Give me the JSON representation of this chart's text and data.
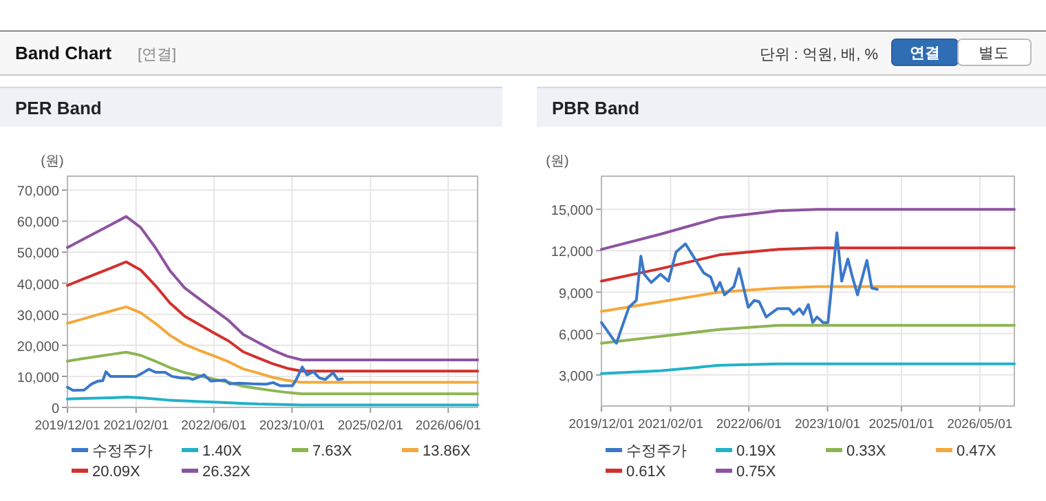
{
  "chart_data": [
    {
      "type": "line",
      "title": "PER Band",
      "ylabel": "(원)",
      "annotations": [
        "Band Chart",
        "[연결]",
        "단위 : 억원, 배, %",
        "연결",
        "별도"
      ],
      "xlim": [
        "2019-12-01",
        "2026-12-01"
      ],
      "xticks": [
        {
          "value": "2019-12-01",
          "label": "2019/12/01"
        },
        {
          "value": "2021-02-01",
          "label": "2021/02/01"
        },
        {
          "value": "2022-06-01",
          "label": "2022/06/01"
        },
        {
          "value": "2023-10-01",
          "label": "2023/10/01"
        },
        {
          "value": "2025-02-01",
          "label": "2025/02/01"
        },
        {
          "value": "2026-06-01",
          "label": "2026/06/01"
        }
      ],
      "ylim": [
        0,
        74500
      ],
      "yticks": [
        0,
        {
          "value": 10000,
          "label": "10,000"
        },
        {
          "value": 20000,
          "label": "20,000"
        },
        {
          "value": 30000,
          "label": "30,000"
        },
        {
          "value": 40000,
          "label": "40,000"
        },
        {
          "value": 50000,
          "label": "50,000"
        },
        {
          "value": 60000,
          "label": "60,000"
        },
        {
          "value": 70000,
          "label": "70,000"
        }
      ],
      "grid": true,
      "legend": "bottom",
      "series": [
        {
          "name": "수정주가",
          "color": "#3a78c9",
          "x": [
            "2019-12-01",
            "2020-01-05",
            "2020-03-15",
            "2020-04-28",
            "2020-06-10",
            "2020-07-08",
            "2020-07-28",
            "2020-08-25",
            "2021-02-01",
            "2021-03-10",
            "2021-04-22",
            "2021-06-03",
            "2021-08-01",
            "2021-09-12",
            "2021-11-10",
            "2021-12-22",
            "2022-01-20",
            "2022-04-01",
            "2022-05-12",
            "2022-08-10",
            "2022-09-07",
            "2022-11-04",
            "2023-01-28",
            "2023-04-24",
            "2023-06-05",
            "2023-07-18",
            "2023-10-04",
            "2023-10-28",
            "2023-12-04",
            "2024-01-03",
            "2024-02-12",
            "2024-03-19",
            "2024-04-25",
            "2024-06-13",
            "2024-07-12",
            "2024-08-10"
          ],
          "values": [
            6500,
            5500,
            5600,
            7500,
            8500,
            8600,
            11500,
            10000,
            10000,
            11000,
            12300,
            11300,
            11300,
            10000,
            9500,
            9500,
            9000,
            10500,
            8500,
            8800,
            7600,
            7800,
            7600,
            7500,
            8000,
            7000,
            7000,
            9000,
            13000,
            10500,
            11500,
            9500,
            9000,
            11200,
            9000,
            9200
          ]
        },
        {
          "name": "1.40X",
          "color": "#20b2c8",
          "x": [
            "2019-12-01",
            "2020-03-01",
            "2020-06-01",
            "2020-09-01",
            "2020-12-01",
            "2021-03-01",
            "2021-06-01",
            "2021-09-01",
            "2021-12-01",
            "2022-03-01",
            "2022-06-01",
            "2022-09-01",
            "2022-12-01",
            "2023-03-01",
            "2023-06-01",
            "2023-09-01",
            "2023-12-01",
            "2026-12-01"
          ],
          "values": [
            2700,
            2900,
            3000,
            3100,
            3300,
            3100,
            2700,
            2300,
            2100,
            1900,
            1700,
            1500,
            1300,
            1100,
            1000,
            900,
            800,
            800
          ]
        },
        {
          "name": "7.63X",
          "color": "#8db552",
          "x": [
            "2019-12-01",
            "2020-03-01",
            "2020-06-01",
            "2020-09-01",
            "2020-12-01",
            "2021-03-01",
            "2021-06-01",
            "2021-09-01",
            "2021-12-01",
            "2022-03-01",
            "2022-06-01",
            "2022-09-01",
            "2022-12-01",
            "2023-03-01",
            "2023-06-01",
            "2023-09-01",
            "2023-12-01",
            "2026-12-01"
          ],
          "values": [
            14900,
            15700,
            16400,
            17100,
            17800,
            16800,
            14900,
            12800,
            11200,
            10200,
            9100,
            8100,
            6800,
            6100,
            5400,
            4800,
            4400,
            4400
          ]
        },
        {
          "name": "13.86X",
          "color": "#f5a83b",
          "x": [
            "2019-12-01",
            "2020-03-01",
            "2020-06-01",
            "2020-09-01",
            "2020-12-01",
            "2021-03-01",
            "2021-06-01",
            "2021-09-01",
            "2021-12-01",
            "2022-03-01",
            "2022-06-01",
            "2022-09-01",
            "2022-12-01",
            "2023-03-01",
            "2023-06-01",
            "2023-09-01",
            "2023-12-01",
            "2026-12-01"
          ],
          "values": [
            27100,
            28400,
            29800,
            31100,
            32400,
            30500,
            27100,
            23200,
            20300,
            18400,
            16600,
            14700,
            12400,
            11100,
            9700,
            8700,
            8100,
            8100
          ]
        },
        {
          "name": "20.09X",
          "color": "#d3302c",
          "x": [
            "2019-12-01",
            "2020-03-01",
            "2020-06-01",
            "2020-09-01",
            "2020-12-01",
            "2021-03-01",
            "2021-06-01",
            "2021-09-01",
            "2021-12-01",
            "2022-03-01",
            "2022-06-01",
            "2022-09-01",
            "2022-12-01",
            "2023-03-01",
            "2023-06-01",
            "2023-09-01",
            "2023-12-01",
            "2026-12-01"
          ],
          "values": [
            39300,
            41200,
            43100,
            45000,
            46900,
            44300,
            39300,
            33600,
            29400,
            26700,
            24000,
            21400,
            17900,
            16000,
            14100,
            12600,
            11700,
            11700
          ]
        },
        {
          "name": "26.32X",
          "color": "#8e53a0",
          "x": [
            "2019-12-01",
            "2020-03-01",
            "2020-06-01",
            "2020-09-01",
            "2020-12-01",
            "2021-03-01",
            "2021-06-01",
            "2021-09-01",
            "2021-12-01",
            "2022-03-01",
            "2022-06-01",
            "2022-09-01",
            "2022-12-01",
            "2023-03-01",
            "2023-06-01",
            "2023-09-01",
            "2023-12-01",
            "2026-12-01"
          ],
          "values": [
            51500,
            54000,
            56500,
            59000,
            61500,
            58000,
            51500,
            44000,
            38500,
            35000,
            31500,
            28000,
            23500,
            21000,
            18500,
            16500,
            15300,
            15300
          ]
        }
      ]
    },
    {
      "type": "line",
      "title": "PBR Band",
      "ylabel": "(원)",
      "xlim": [
        "2019-12-01",
        "2026-12-01"
      ],
      "xticks": [
        {
          "value": "2019-12-01",
          "label": "2019/12/01"
        },
        {
          "value": "2021-02-01",
          "label": "2021/02/01"
        },
        {
          "value": "2022-06-01",
          "label": "2022/06/01"
        },
        {
          "value": "2023-10-01",
          "label": "2023/10/01"
        },
        {
          "value": "2025-01-01",
          "label": "2025/01/01"
        },
        {
          "value": "2026-05-01",
          "label": "2026/05/01"
        }
      ],
      "ylim": [
        750,
        17400
      ],
      "yticks": [
        {
          "value": 3000,
          "label": "3,000"
        },
        {
          "value": 6000,
          "label": "6,000"
        },
        {
          "value": 9000,
          "label": "9,000"
        },
        {
          "value": 12000,
          "label": "12,000"
        },
        {
          "value": 15000,
          "label": "15,000"
        }
      ],
      "grid": true,
      "legend": "bottom",
      "series": [
        {
          "name": "수정주가",
          "color": "#3a78c9",
          "x": [
            "2019-12-01",
            "2020-02-05",
            "2020-03-03",
            "2020-04-01",
            "2020-05-19",
            "2020-07-04",
            "2020-08-01",
            "2020-08-22",
            "2020-10-04",
            "2020-12-01",
            "2021-01-19",
            "2021-03-07",
            "2021-05-04",
            "2021-07-13",
            "2021-08-25",
            "2021-10-07",
            "2021-11-07",
            "2021-12-04",
            "2022-01-01",
            "2022-02-28",
            "2022-04-01",
            "2022-05-28",
            "2022-07-04",
            "2022-08-04",
            "2022-09-16",
            "2022-11-25",
            "2023-02-04",
            "2023-03-04",
            "2023-04-10",
            "2023-05-04",
            "2023-06-04",
            "2023-07-01",
            "2023-07-28",
            "2023-09-04",
            "2023-10-04",
            "2023-11-28",
            "2023-12-28",
            "2024-02-04",
            "2024-03-01",
            "2024-04-04",
            "2024-06-01",
            "2024-07-01",
            "2024-08-04"
          ],
          "values": [
            6800,
            5700,
            5300,
            6300,
            7900,
            8400,
            11600,
            10300,
            9700,
            10300,
            9800,
            11900,
            12500,
            11200,
            10400,
            10100,
            9100,
            9700,
            8800,
            9400,
            10700,
            7900,
            8400,
            8300,
            7200,
            7800,
            7800,
            7400,
            7800,
            7400,
            8100,
            6800,
            7200,
            6800,
            6800,
            13300,
            9800,
            11400,
            10200,
            8800,
            11300,
            9300,
            9200
          ]
        },
        {
          "name": "0.19X",
          "color": "#20b2c8",
          "x": [
            "2019-12-01",
            "2020-12-01",
            "2021-12-01",
            "2022-12-01",
            "2023-08-01",
            "2026-12-01"
          ],
          "values": [
            3100,
            3300,
            3700,
            3800,
            3800,
            3800
          ]
        },
        {
          "name": "0.33X",
          "color": "#8db552",
          "x": [
            "2019-12-01",
            "2020-12-01",
            "2021-12-01",
            "2022-12-01",
            "2023-08-01",
            "2026-12-01"
          ],
          "values": [
            5300,
            5800,
            6300,
            6600,
            6600,
            6600
          ]
        },
        {
          "name": "0.47X",
          "color": "#f5a83b",
          "x": [
            "2019-12-01",
            "2020-12-01",
            "2021-12-01",
            "2022-12-01",
            "2023-08-01",
            "2026-12-01"
          ],
          "values": [
            7600,
            8300,
            9000,
            9300,
            9400,
            9400
          ]
        },
        {
          "name": "0.61X",
          "color": "#d3302c",
          "x": [
            "2019-12-01",
            "2020-12-01",
            "2021-12-01",
            "2022-12-01",
            "2023-08-01",
            "2026-12-01"
          ],
          "values": [
            9800,
            10700,
            11700,
            12100,
            12200,
            12200
          ]
        },
        {
          "name": "0.75X",
          "color": "#8e53a0",
          "x": [
            "2019-12-01",
            "2020-12-01",
            "2021-12-01",
            "2022-12-01",
            "2023-08-01",
            "2026-12-01"
          ],
          "values": [
            12100,
            13200,
            14400,
            14900,
            15000,
            15000
          ]
        }
      ]
    }
  ]
}
